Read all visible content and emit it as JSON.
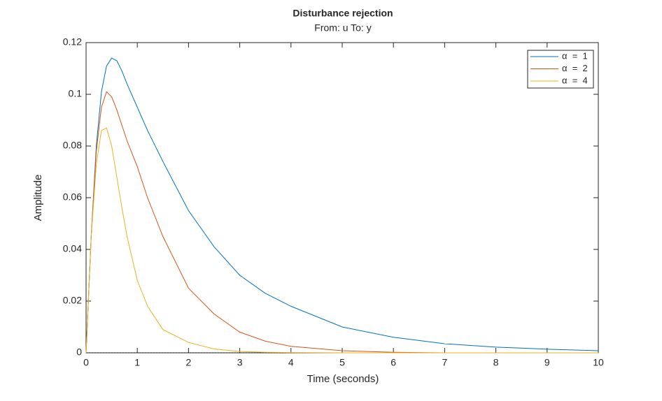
{
  "chart_data": {
    "type": "line",
    "title": "Disturbance rejection",
    "subtitle": "From: u  To: y",
    "x_label": "Time (seconds)",
    "y_label": "Amplitude",
    "x": [
      0,
      0.1,
      0.2,
      0.3,
      0.4,
      0.5,
      0.6,
      0.7,
      0.8,
      1,
      1.2,
      1.5,
      2,
      2.5,
      3,
      3.5,
      4,
      5,
      6,
      7,
      8,
      9,
      10
    ],
    "series": [
      {
        "name": "α  =  1",
        "color": "#0072bd",
        "values": [
          0,
          0.045,
          0.08,
          0.101,
          0.111,
          0.114,
          0.113,
          0.109,
          0.104,
          0.095,
          0.086,
          0.074,
          0.055,
          0.041,
          0.03,
          0.023,
          0.018,
          0.01,
          0.006,
          0.0035,
          0.0022,
          0.0014,
          0.0008
        ]
      },
      {
        "name": "α  =  2",
        "color": "#d95319",
        "values": [
          0,
          0.045,
          0.078,
          0.095,
          0.101,
          0.099,
          0.094,
          0.088,
          0.082,
          0.072,
          0.06,
          0.045,
          0.025,
          0.015,
          0.008,
          0.0045,
          0.0025,
          0.0008,
          0.0002,
          0,
          0,
          0,
          0
        ]
      },
      {
        "name": "α  =  4",
        "color": "#edb120",
        "values": [
          0,
          0.045,
          0.073,
          0.086,
          0.087,
          0.08,
          0.068,
          0.056,
          0.045,
          0.028,
          0.018,
          0.009,
          0.004,
          0.0015,
          0.0005,
          0.0002,
          0.0001,
          0,
          0,
          0,
          0,
          0,
          0
        ]
      }
    ],
    "xlim": [
      0,
      10
    ],
    "xticks": [
      0,
      1,
      2,
      3,
      4,
      5,
      6,
      7,
      8,
      9,
      10
    ],
    "ylim": [
      0,
      0.12
    ],
    "yticks": [
      0,
      0.02,
      0.04,
      0.06,
      0.08,
      0.1,
      0.12
    ],
    "legend": "northeast"
  }
}
